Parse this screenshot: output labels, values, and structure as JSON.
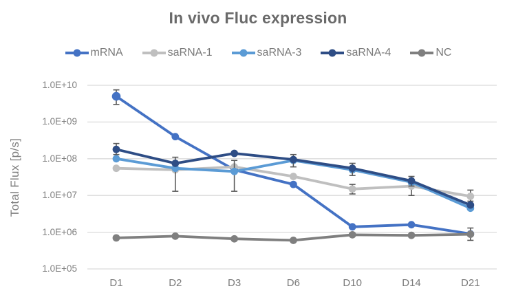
{
  "chart_data": {
    "type": "line",
    "title": "In vivo Fluc expression",
    "ylabel": "Total Flux [p/s]",
    "xlabel": "",
    "y_scale": "log",
    "ylim": [
      100000.0,
      10000000000.0
    ],
    "y_tick_labels": [
      "1.0E+10",
      "1.0E+09",
      "1.0E+08",
      "1.0E+07",
      "1.0E+06",
      "1.0E+05"
    ],
    "categories": [
      "D1",
      "D2",
      "D3",
      "D6",
      "D10",
      "D14",
      "D21"
    ],
    "grid": true,
    "legend_position": "top",
    "series": [
      {
        "name": "mRNA",
        "color": "#4472C4",
        "values": [
          5000000000.0,
          400000000.0,
          50000000.0,
          20000000.0,
          1400000.0,
          1600000.0,
          900000.0
        ]
      },
      {
        "name": "saRNA-1",
        "color": "#BFBFBF",
        "values": [
          55000000.0,
          50000000.0,
          60000000.0,
          33000000.0,
          15000000.0,
          18000000.0,
          9500000.0
        ]
      },
      {
        "name": "saRNA-3",
        "color": "#5B9BD5",
        "values": [
          100000000.0,
          55000000.0,
          45000000.0,
          90000000.0,
          50000000.0,
          23000000.0,
          4500000.0
        ]
      },
      {
        "name": "saRNA-4",
        "color": "#2E4D85",
        "values": [
          180000000.0,
          75000000.0,
          140000000.0,
          95000000.0,
          55000000.0,
          25000000.0,
          5500000.0
        ]
      },
      {
        "name": "NC",
        "color": "#7F7F7F",
        "values": [
          700000.0,
          780000.0,
          660000.0,
          600000.0,
          850000.0,
          820000.0,
          880000.0
        ]
      }
    ],
    "error_bars": [
      {
        "series": "mRNA",
        "category": "D1",
        "low": 3000000000.0,
        "high": 7500000000.0
      },
      {
        "series": "saRNA-4",
        "category": "D1",
        "low": 130000000.0,
        "high": 260000000.0
      },
      {
        "series": "saRNA-3",
        "category": "D2",
        "low": 13000000.0,
        "high": 110000000.0
      },
      {
        "series": "saRNA-3",
        "category": "D3",
        "low": 13000000.0,
        "high": 90000000.0
      },
      {
        "series": "saRNA-4",
        "category": "D6",
        "low": 60000000.0,
        "high": 130000000.0
      },
      {
        "series": "saRNA-4",
        "category": "D10",
        "low": 35000000.0,
        "high": 75000000.0
      },
      {
        "series": "saRNA-1",
        "category": "D10",
        "low": 11000000.0,
        "high": 20000000.0
      },
      {
        "series": "saRNA-1",
        "category": "D14",
        "low": 10000000.0,
        "high": 26000000.0
      },
      {
        "series": "saRNA-4",
        "category": "D14",
        "low": 18000000.0,
        "high": 33000000.0
      },
      {
        "series": "saRNA-1",
        "category": "D21",
        "low": 7000000.0,
        "high": 14000000.0
      },
      {
        "series": "NC",
        "category": "D21",
        "low": 600000.0,
        "high": 1300000.0
      }
    ],
    "colors": {
      "gridline": "#D9D9D9",
      "error_bar": "#595959",
      "title_text": "#6A6A6A",
      "axis_text": "#7F7F7F"
    }
  }
}
